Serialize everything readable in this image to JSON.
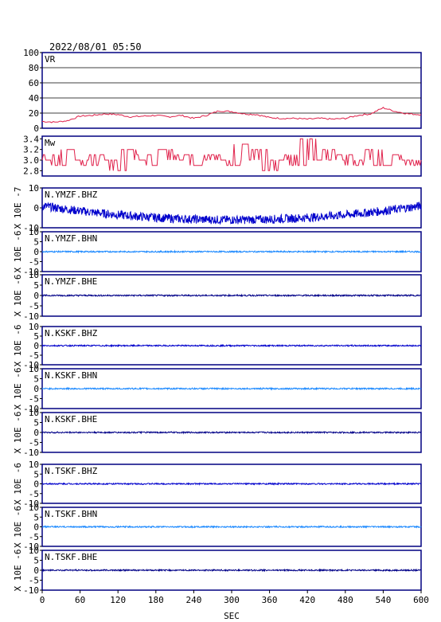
{
  "header": {
    "datetime": "2022/08/01 05:50"
  },
  "colors": {
    "frame": "#000080",
    "vr_mw_trace": "#e0204a",
    "bhz_trace": "#0000cc",
    "bhn_trace": "#1a88ff",
    "bhe_trace": "#000088",
    "grid": "#000000"
  },
  "chart_data": [
    {
      "type": "line",
      "id": "vr",
      "label": "VR",
      "ylim": [
        0,
        100
      ],
      "yticks": [
        "100",
        "80",
        "60",
        "40",
        "20",
        "0"
      ],
      "grid": true,
      "x": [
        0,
        20,
        40,
        60,
        80,
        100,
        120,
        140,
        160,
        180,
        200,
        220,
        240,
        260,
        280,
        300,
        320,
        340,
        360,
        380,
        400,
        420,
        440,
        460,
        480,
        500,
        520,
        540,
        560,
        580,
        600
      ],
      "y": [
        9,
        8,
        10,
        16,
        17,
        19,
        18,
        15,
        16,
        17,
        15,
        17,
        13,
        17,
        23,
        22,
        19,
        18,
        14,
        13,
        13,
        12,
        13,
        12,
        13,
        17,
        19,
        27,
        22,
        19,
        18
      ]
    },
    {
      "type": "line",
      "id": "mw",
      "label": "Mw",
      "ylim": [
        2.7,
        3.45
      ],
      "yticks": [
        "3.4",
        "3.2",
        "3.0",
        "2.8"
      ],
      "grid": false,
      "x": [
        0,
        15,
        30,
        45,
        60,
        75,
        90,
        105,
        120,
        135,
        150,
        165,
        180,
        195,
        210,
        225,
        240,
        255,
        270,
        285,
        300,
        315,
        330,
        345,
        360,
        375,
        390,
        405,
        420,
        435,
        450,
        465,
        480,
        495,
        510,
        525,
        540,
        555,
        570,
        585,
        600
      ],
      "y": [
        3.0,
        3.1,
        2.9,
        3.2,
        3.0,
        2.9,
        3.1,
        3.0,
        2.8,
        3.2,
        3.0,
        3.1,
        2.9,
        3.2,
        3.0,
        3.1,
        2.9,
        3.0,
        3.1,
        3.0,
        2.9,
        3.3,
        3.0,
        3.2,
        2.8,
        3.0,
        3.1,
        2.9,
        3.4,
        3.0,
        3.2,
        3.0,
        3.1,
        2.9,
        3.0,
        3.2,
        2.9,
        3.1,
        3.0,
        2.9,
        3.0
      ]
    },
    {
      "type": "line",
      "id": "ymzf-bhz",
      "label": "N.YMZF.BHZ",
      "ylim": [
        -10,
        10
      ],
      "yticks": [
        "10",
        "0",
        "-10"
      ],
      "ylabel": "X 10E -7",
      "trend": "bowl"
    },
    {
      "type": "line",
      "id": "ymzf-bhn",
      "label": "N.YMZF.BHN",
      "ylim": [
        -10,
        10
      ],
      "yticks": [
        "10",
        "5",
        "0",
        "-5",
        "-10"
      ],
      "ylabel": "X 10E -6",
      "trend": "flat"
    },
    {
      "type": "line",
      "id": "ymzf-bhe",
      "label": "N.YMZF.BHE",
      "ylim": [
        -10,
        10
      ],
      "yticks": [
        "10",
        "5",
        "0",
        "-5",
        "-10"
      ],
      "ylabel": "X 10E -6",
      "trend": "flat"
    },
    {
      "type": "line",
      "id": "kskf-bhz",
      "label": "N.KSKF.BHZ",
      "ylim": [
        -10,
        10
      ],
      "yticks": [
        "10",
        "5",
        "0",
        "-5",
        "-10"
      ],
      "ylabel": "X 10E -6",
      "trend": "flat"
    },
    {
      "type": "line",
      "id": "kskf-bhn",
      "label": "N.KSKF.BHN",
      "ylim": [
        -10,
        10
      ],
      "yticks": [
        "10",
        "5",
        "0",
        "-5",
        "-10"
      ],
      "ylabel": "X 10E -6",
      "trend": "flat"
    },
    {
      "type": "line",
      "id": "kskf-bhe",
      "label": "N.KSKF.BHE",
      "ylim": [
        -10,
        10
      ],
      "yticks": [
        "10",
        "5",
        "0",
        "-5",
        "-10"
      ],
      "ylabel": "X 10E -6",
      "trend": "flat"
    },
    {
      "type": "line",
      "id": "tskf-bhz",
      "label": "N.TSKF.BHZ",
      "ylim": [
        -10,
        10
      ],
      "yticks": [
        "10",
        "5",
        "0",
        "-5",
        "-10"
      ],
      "ylabel": "X 10E -6",
      "trend": "flat"
    },
    {
      "type": "line",
      "id": "tskf-bhn",
      "label": "N.TSKF.BHN",
      "ylim": [
        -10,
        10
      ],
      "yticks": [
        "10",
        "5",
        "0",
        "-5",
        "-10"
      ],
      "ylabel": "X 10E -6",
      "trend": "flat"
    },
    {
      "type": "line",
      "id": "tskf-bhe",
      "label": "N.TSKF.BHE",
      "ylim": [
        -10,
        10
      ],
      "yticks": [
        "10",
        "5",
        "0",
        "-5",
        "-10"
      ],
      "ylabel": "X 10E -6",
      "trend": "flat"
    }
  ],
  "xaxis": {
    "label": "SEC",
    "ticks": [
      0,
      60,
      120,
      180,
      240,
      300,
      360,
      420,
      480,
      540,
      600
    ],
    "xlim": [
      0,
      600
    ]
  }
}
